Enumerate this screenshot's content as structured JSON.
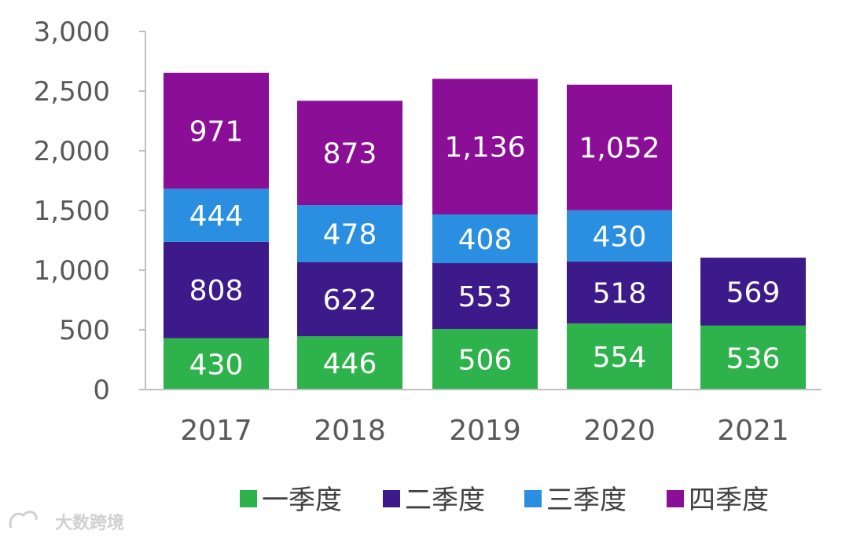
{
  "chart_data": {
    "type": "bar",
    "stacked": true,
    "categories": [
      "2017",
      "2018",
      "2019",
      "2020",
      "2021"
    ],
    "series": [
      {
        "name": "一季度",
        "color": "#2eb24c",
        "values": [
          430,
          446,
          506,
          554,
          536
        ]
      },
      {
        "name": "二季度",
        "color": "#3d1a8a",
        "values": [
          808,
          622,
          553,
          518,
          569
        ]
      },
      {
        "name": "三季度",
        "color": "#2a8fe0",
        "values": [
          444,
          478,
          408,
          430,
          null
        ]
      },
      {
        "name": "四季度",
        "color": "#8a0f96",
        "values": [
          971,
          873,
          1136,
          1052,
          null
        ]
      }
    ],
    "value_labels": {
      "一季度": [
        "430",
        "446",
        "506",
        "554",
        "536"
      ],
      "二季度": [
        "808",
        "622",
        "553",
        "518",
        "569"
      ],
      "三季度": [
        "444",
        "478",
        "408",
        "430",
        ""
      ],
      "四季度": [
        "971",
        "873",
        "1,136",
        "1,052",
        ""
      ]
    },
    "yticks": [
      "0",
      "500",
      "1,000",
      "1,500",
      "2,000",
      "2,500",
      "3,000"
    ],
    "ytick_values": [
      0,
      500,
      1000,
      1500,
      2000,
      2500,
      3000
    ],
    "ylim": [
      0,
      3000
    ],
    "legend_position": "bottom",
    "title": "",
    "xlabel": "",
    "ylabel": ""
  },
  "watermark": {
    "logo_text": "大数跨境"
  }
}
